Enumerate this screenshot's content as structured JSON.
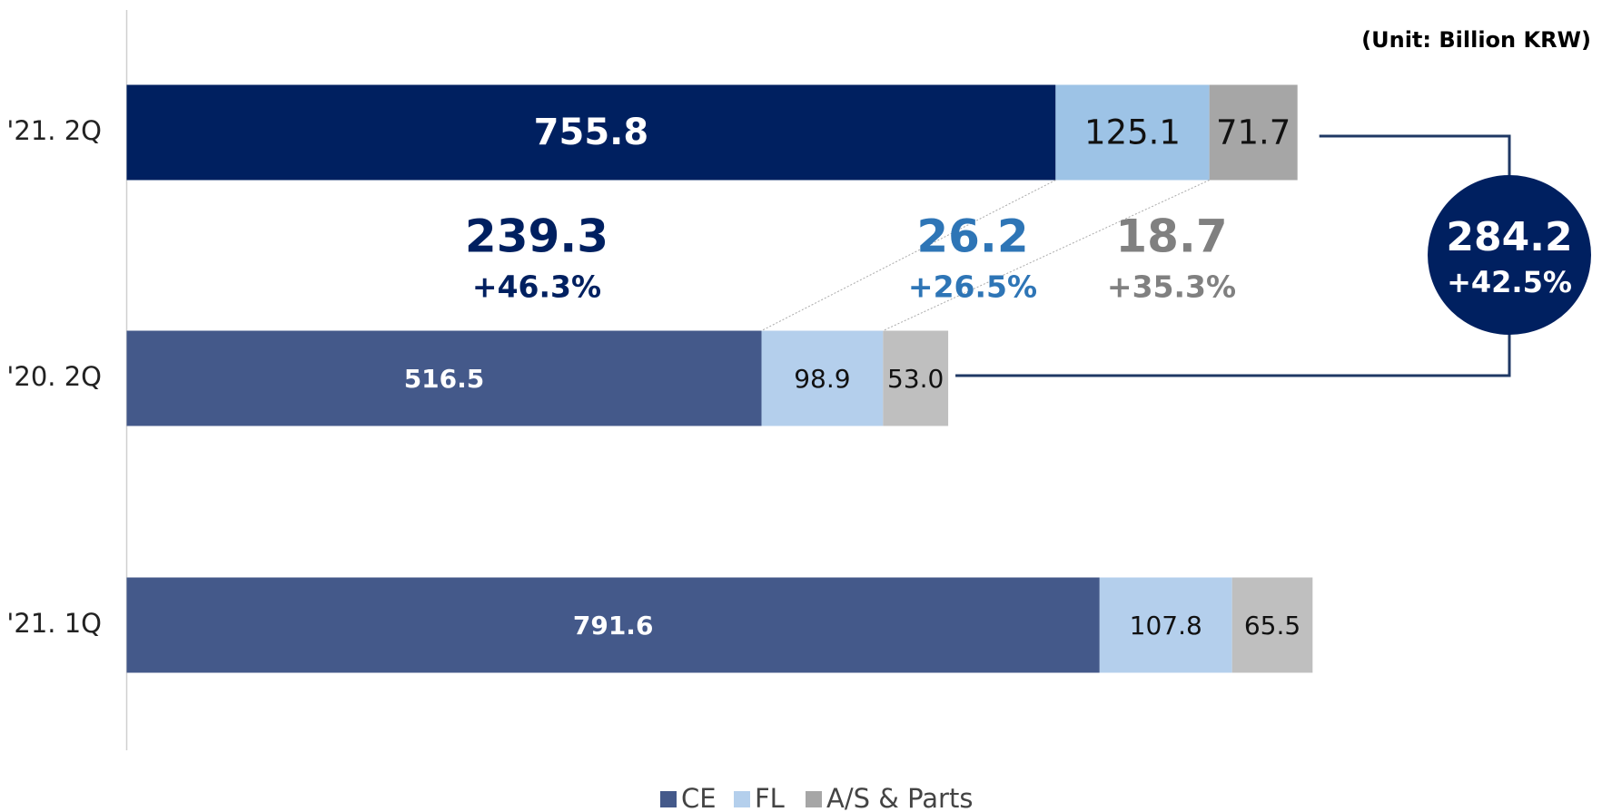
{
  "chart_data": {
    "type": "stacked-barh",
    "unit": "(Unit: Billion KRW)",
    "categories": [
      "'21. 2Q",
      "'20. 2Q",
      "'21. 1Q"
    ],
    "series": [
      {
        "name": "CE",
        "color": "#44598a",
        "colors": [
          "#002060",
          "#44598a",
          "#44598a"
        ],
        "values": [
          755.8,
          516.5,
          791.6
        ]
      },
      {
        "name": "FL",
        "color": "#b4cfec",
        "colors": [
          "#9dc3e6",
          "#b4cfec",
          "#b4cfec"
        ],
        "values": [
          125.1,
          98.9,
          107.8
        ]
      },
      {
        "name": "A/S & Parts",
        "color": "#a6a6a6",
        "colors": [
          "#a6a6a6",
          "#bfbfbf",
          "#bfbfbf"
        ],
        "values": [
          71.7,
          53.0,
          65.5
        ],
        "value_labels": [
          "71.7",
          "53.0",
          "65.5"
        ]
      }
    ],
    "xlim": [
      0,
      1200
    ],
    "changes": [
      {
        "value": 239.3,
        "pct": "+46.3%",
        "color": "#002060"
      },
      {
        "value": 26.2,
        "pct": "+26.5%",
        "color": "#2e75b6"
      },
      {
        "value": 18.7,
        "pct": "+35.3%",
        "color": "#808080"
      }
    ],
    "total_change": {
      "value": 284.2,
      "pct": "+42.5%",
      "color": "#002060"
    }
  }
}
